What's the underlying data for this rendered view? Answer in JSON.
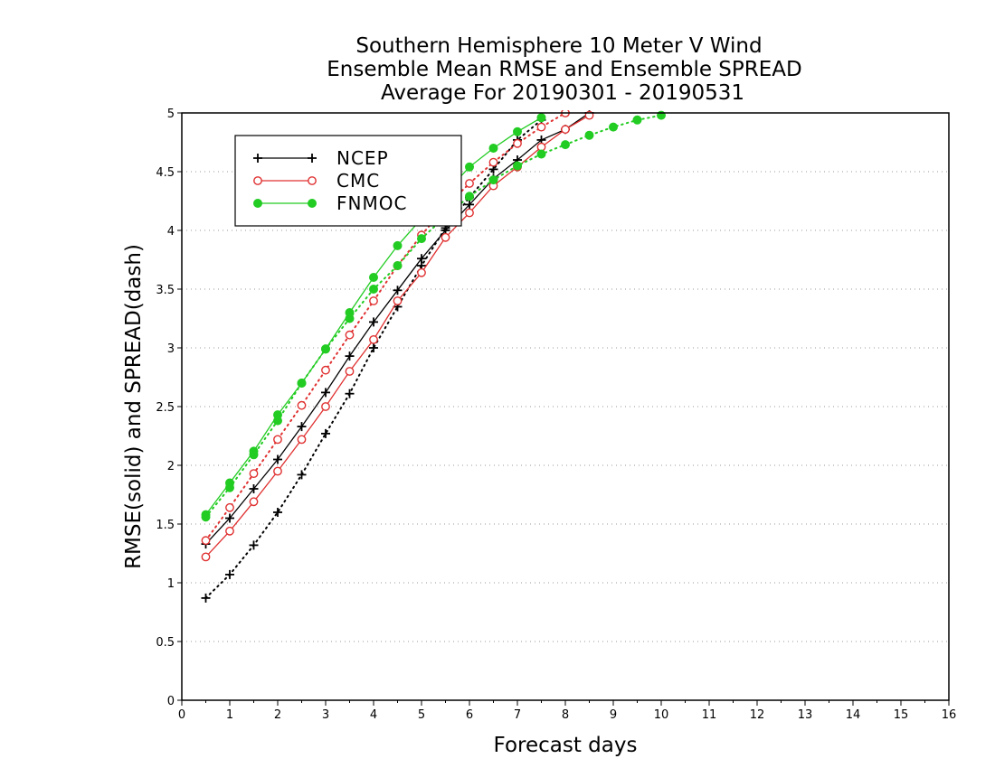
{
  "chart_data": {
    "type": "line",
    "title": [
      "Southern Hemisphere 10 Meter V Wind",
      "Ensemble Mean RMSE and Ensemble SPREAD",
      "Average For 20190301 - 20190531"
    ],
    "xlabel": "Forecast days",
    "ylabel": "RMSE(solid) and SPREAD(dash)",
    "xlim": [
      0,
      16
    ],
    "ylim": [
      0,
      5
    ],
    "xticks": [
      "0",
      "1",
      "2",
      "3",
      "4",
      "5",
      "6",
      "7",
      "8",
      "9",
      "10",
      "11",
      "12",
      "13",
      "14",
      "15",
      "16"
    ],
    "yticks": [
      "0",
      "0.5",
      "1",
      "1.5",
      "2",
      "2.5",
      "3",
      "3.5",
      "4",
      "4.5",
      "5"
    ],
    "grid": "horizontal dotted",
    "legend_position": "top-left",
    "series": [
      {
        "name": "NCEP",
        "metric": "RMSE",
        "style": "solid",
        "marker": "plus",
        "color": "#000000",
        "x": [
          0.5,
          1,
          1.5,
          2,
          2.5,
          3,
          3.5,
          4,
          4.5,
          5,
          5.5,
          6,
          6.5,
          7,
          7.5,
          8,
          8.5
        ],
        "y": [
          1.33,
          1.55,
          1.8,
          2.05,
          2.33,
          2.62,
          2.93,
          3.22,
          3.49,
          3.76,
          4.0,
          4.22,
          4.44,
          4.6,
          4.77,
          4.86,
          5.0
        ]
      },
      {
        "name": "NCEP",
        "metric": "SPREAD",
        "style": "dash",
        "marker": "plus",
        "color": "#000000",
        "x": [
          0.5,
          1,
          1.5,
          2,
          2.5,
          3,
          3.5,
          4,
          4.5,
          5,
          5.5,
          6,
          6.5,
          7,
          7.5
        ],
        "y": [
          0.87,
          1.07,
          1.32,
          1.6,
          1.92,
          2.27,
          2.61,
          3.0,
          3.35,
          3.7,
          4.02,
          4.28,
          4.52,
          4.77,
          4.94
        ]
      },
      {
        "name": "CMC",
        "metric": "RMSE",
        "style": "solid",
        "marker": "open-circle",
        "color": "#e03030",
        "x": [
          0.5,
          1,
          1.5,
          2,
          2.5,
          3,
          3.5,
          4,
          4.5,
          5,
          5.5,
          6,
          6.5,
          7,
          7.5,
          8,
          8.5
        ],
        "y": [
          1.22,
          1.44,
          1.69,
          1.95,
          2.22,
          2.5,
          2.8,
          3.07,
          3.4,
          3.64,
          3.94,
          4.15,
          4.38,
          4.54,
          4.71,
          4.86,
          4.98
        ]
      },
      {
        "name": "CMC",
        "metric": "SPREAD",
        "style": "dash",
        "marker": "open-circle",
        "color": "#e03030",
        "x": [
          0.5,
          1,
          1.5,
          2,
          2.5,
          3,
          3.5,
          4,
          4.5,
          5,
          5.5,
          6,
          6.5,
          7,
          7.5,
          8
        ],
        "y": [
          1.36,
          1.64,
          1.93,
          2.22,
          2.51,
          2.81,
          3.11,
          3.4,
          3.7,
          3.96,
          4.2,
          4.4,
          4.58,
          4.74,
          4.88,
          5.0
        ]
      },
      {
        "name": "FNMOC",
        "metric": "RMSE",
        "style": "solid",
        "marker": "filled-circle",
        "color": "#22cc22",
        "x": [
          0.5,
          1,
          1.5,
          2,
          2.5,
          3,
          3.5,
          4,
          4.5,
          5,
          5.5,
          6,
          6.5,
          7,
          7.5
        ],
        "y": [
          1.58,
          1.85,
          2.12,
          2.43,
          2.7,
          2.99,
          3.3,
          3.6,
          3.87,
          4.1,
          4.32,
          4.54,
          4.7,
          4.84,
          4.96
        ]
      },
      {
        "name": "FNMOC",
        "metric": "SPREAD",
        "style": "dash",
        "marker": "filled-circle",
        "color": "#22cc22",
        "x": [
          0.5,
          1,
          1.5,
          2,
          2.5,
          3,
          3.5,
          4,
          4.5,
          5,
          5.5,
          6,
          6.5,
          7,
          7.5,
          8,
          8.5,
          9,
          9.5,
          10
        ],
        "y": [
          1.56,
          1.81,
          2.09,
          2.38,
          2.7,
          2.99,
          3.25,
          3.5,
          3.7,
          3.93,
          4.12,
          4.29,
          4.43,
          4.55,
          4.65,
          4.73,
          4.81,
          4.88,
          4.94,
          4.98
        ]
      }
    ],
    "legend": [
      {
        "name": "NCEP",
        "marker": "plus",
        "color": "#000000"
      },
      {
        "name": "CMC",
        "marker": "open-circle",
        "color": "#e03030"
      },
      {
        "name": "FNMOC",
        "marker": "filled-circle",
        "color": "#22cc22"
      }
    ]
  }
}
